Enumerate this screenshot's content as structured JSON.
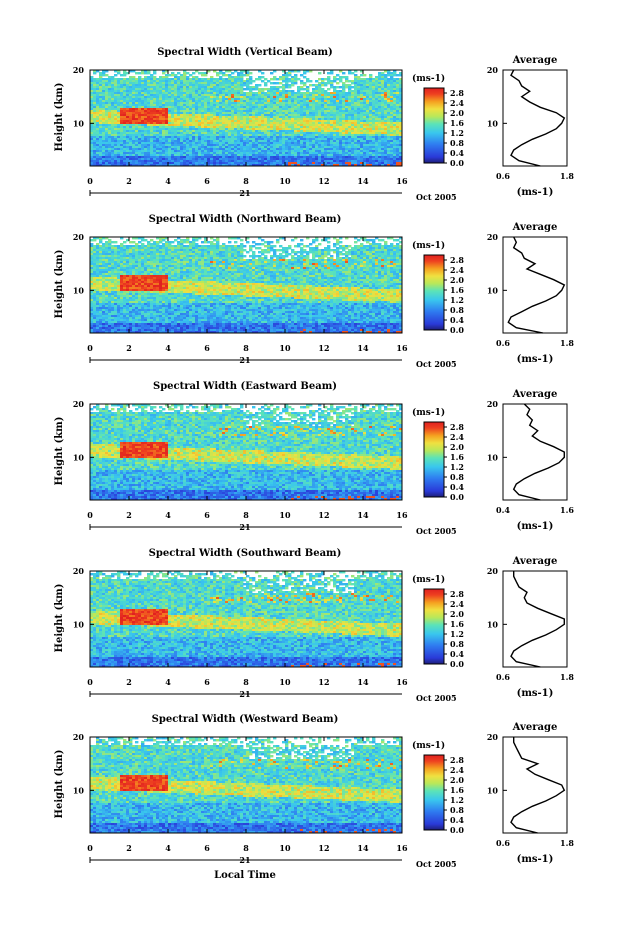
{
  "chart_data": [
    {
      "type": "heatmap",
      "title": "Spectral Width (Vertical Beam)",
      "ylabel": "Height (km)",
      "ylim": [
        2,
        20
      ],
      "xlim": [
        0,
        16
      ],
      "x_ticks": [
        0,
        2,
        4,
        6,
        8,
        10,
        12,
        14,
        16
      ],
      "y_ticks": [
        10,
        20
      ],
      "date_day": "21",
      "date_label": "Oct 2005",
      "colorbar": {
        "unit": "(ms-1)",
        "ticks": [
          "0.0",
          "0.4",
          "0.8",
          "1.2",
          "1.6",
          "2.0",
          "2.4",
          "2.8"
        ],
        "vmin": 0.0,
        "vmax": 3.0
      },
      "average_profile": {
        "title": "Average",
        "xlabel": "(ms-1)",
        "xlim": [
          0.6,
          1.8
        ],
        "x_ticks": [
          "0.6",
          "1.8"
        ],
        "y_ticks": [
          10,
          20
        ],
        "height_km": [
          2,
          3,
          4,
          5,
          6,
          7,
          8,
          9,
          10,
          11,
          12,
          13,
          14,
          15,
          16,
          17,
          18,
          19,
          20
        ],
        "width_ms": [
          1.3,
          0.9,
          0.75,
          0.8,
          0.95,
          1.15,
          1.4,
          1.6,
          1.7,
          1.75,
          1.6,
          1.3,
          1.1,
          0.95,
          1.1,
          0.95,
          0.9,
          0.75,
          0.8
        ]
      }
    },
    {
      "type": "heatmap",
      "title": "Spectral Width (Northward Beam)",
      "ylabel": "Height (km)",
      "ylim": [
        2,
        20
      ],
      "xlim": [
        0,
        16
      ],
      "x_ticks": [
        0,
        2,
        4,
        6,
        8,
        10,
        12,
        14,
        16
      ],
      "y_ticks": [
        10,
        20
      ],
      "date_day": "21",
      "date_label": "Oct 2005",
      "colorbar": {
        "unit": "(ms-1)",
        "ticks": [
          "0.0",
          "0.4",
          "0.8",
          "1.2",
          "1.6",
          "2.0",
          "2.4",
          "2.8"
        ],
        "vmin": 0.0,
        "vmax": 3.0
      },
      "average_profile": {
        "title": "Average",
        "xlabel": "(ms-1)",
        "xlim": [
          0.6,
          1.8
        ],
        "x_ticks": [
          "0.6",
          "1.8"
        ],
        "y_ticks": [
          10,
          20
        ],
        "height_km": [
          2,
          3,
          4,
          5,
          6,
          7,
          8,
          9,
          10,
          11,
          12,
          13,
          14,
          15,
          16,
          17,
          18,
          19,
          20
        ],
        "width_ms": [
          1.35,
          0.85,
          0.7,
          0.75,
          0.95,
          1.15,
          1.4,
          1.6,
          1.7,
          1.75,
          1.55,
          1.3,
          1.05,
          1.2,
          1.0,
          0.95,
          0.8,
          0.85,
          0.8
        ]
      }
    },
    {
      "type": "heatmap",
      "title": "Spectral Width (Eastward Beam)",
      "ylabel": "Height (km)",
      "ylim": [
        2,
        20
      ],
      "xlim": [
        0,
        16
      ],
      "x_ticks": [
        0,
        2,
        4,
        6,
        8,
        10,
        12,
        14,
        16
      ],
      "y_ticks": [
        10,
        20
      ],
      "date_day": "21",
      "date_label": "Oct 2005",
      "colorbar": {
        "unit": "(ms-1)",
        "ticks": [
          "0.0",
          "0.4",
          "0.8",
          "1.2",
          "1.6",
          "2.0",
          "2.4",
          "2.8"
        ],
        "vmin": 0.0,
        "vmax": 3.0
      },
      "average_profile": {
        "title": "Average",
        "xlabel": "(ms-1)",
        "xlim": [
          0.4,
          1.6
        ],
        "x_ticks": [
          "0.4",
          "1.6"
        ],
        "y_ticks": [
          10,
          20
        ],
        "height_km": [
          2,
          3,
          4,
          5,
          6,
          7,
          8,
          9,
          10,
          11,
          12,
          13,
          14,
          15,
          16,
          17,
          18,
          19,
          20
        ],
        "width_ms": [
          1.1,
          0.7,
          0.6,
          0.65,
          0.8,
          1.0,
          1.25,
          1.45,
          1.55,
          1.55,
          1.35,
          1.1,
          0.95,
          1.05,
          0.9,
          0.95,
          0.85,
          0.9,
          0.8
        ]
      }
    },
    {
      "type": "heatmap",
      "title": "Spectral Width (Southward Beam)",
      "ylabel": "Height (km)",
      "ylim": [
        2,
        20
      ],
      "xlim": [
        0,
        16
      ],
      "x_ticks": [
        0,
        2,
        4,
        6,
        8,
        10,
        12,
        14,
        16
      ],
      "y_ticks": [
        10,
        20
      ],
      "date_day": "21",
      "date_label": "Oct 2005",
      "colorbar": {
        "unit": "(ms-1)",
        "ticks": [
          "0.0",
          "0.4",
          "0.8",
          "1.2",
          "1.6",
          "2.0",
          "2.4",
          "2.8"
        ],
        "vmin": 0.0,
        "vmax": 3.0
      },
      "average_profile": {
        "title": "Average",
        "xlabel": "(ms-1)",
        "xlim": [
          0.6,
          1.8
        ],
        "x_ticks": [
          "0.6",
          "1.8"
        ],
        "y_ticks": [
          10,
          20
        ],
        "height_km": [
          2,
          3,
          4,
          5,
          6,
          7,
          8,
          9,
          10,
          11,
          12,
          13,
          14,
          15,
          16,
          17,
          18,
          19,
          20
        ],
        "width_ms": [
          1.3,
          0.85,
          0.75,
          0.8,
          0.95,
          1.15,
          1.4,
          1.6,
          1.75,
          1.75,
          1.5,
          1.25,
          1.05,
          1.0,
          1.05,
          0.9,
          0.85,
          0.8,
          0.8
        ]
      }
    },
    {
      "type": "heatmap",
      "title": "Spectral Width (Westward Beam)",
      "ylabel": "Height (km)",
      "xlabel": "Local Time",
      "ylim": [
        2,
        20
      ],
      "xlim": [
        0,
        16
      ],
      "x_ticks": [
        0,
        2,
        4,
        6,
        8,
        10,
        12,
        14,
        16
      ],
      "y_ticks": [
        10,
        20
      ],
      "date_day": "21",
      "date_label": "Oct 2005",
      "colorbar": {
        "unit": "(ms-1)",
        "ticks": [
          "0.0",
          "0.4",
          "0.8",
          "1.2",
          "1.6",
          "2.0",
          "2.4",
          "2.8"
        ],
        "vmin": 0.0,
        "vmax": 3.0
      },
      "average_profile": {
        "title": "Average",
        "xlabel": "(ms-1)",
        "xlim": [
          0.6,
          1.8
        ],
        "x_ticks": [
          "0.6",
          "1.8"
        ],
        "y_ticks": [
          10,
          20
        ],
        "height_km": [
          2,
          3,
          4,
          5,
          6,
          7,
          8,
          9,
          10,
          11,
          12,
          13,
          14,
          15,
          16,
          17,
          18,
          19,
          20
        ],
        "width_ms": [
          1.25,
          0.85,
          0.75,
          0.8,
          0.95,
          1.15,
          1.4,
          1.6,
          1.75,
          1.7,
          1.45,
          1.2,
          1.05,
          1.25,
          0.95,
          0.9,
          0.85,
          0.8,
          0.8
        ]
      }
    }
  ]
}
